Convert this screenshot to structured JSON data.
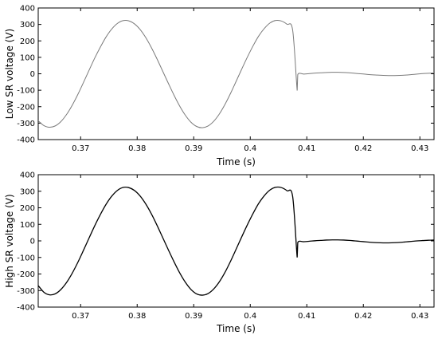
{
  "chart_data": [
    {
      "type": "line",
      "xlabel": "Time (s)",
      "ylabel": "Low SR voltage (V)",
      "xlim": [
        0.3625,
        0.4325
      ],
      "ylim": [
        -400,
        400
      ],
      "xticks": [
        0.37,
        0.38,
        0.39,
        0.4,
        0.41,
        0.42,
        0.43
      ],
      "xtick_labels": [
        "0.37",
        "0.38",
        "0.39",
        "0.4",
        "0.41",
        "0.42",
        "0.43"
      ],
      "yticks": [
        400,
        300,
        200,
        100,
        0,
        -100,
        -200,
        -300,
        -400
      ],
      "ytick_labels": [
        "400",
        "300",
        "200",
        "100",
        "0",
        "-100",
        "-200",
        "-300",
        "-400"
      ],
      "grid": false,
      "line_color": "#7a7a7a",
      "series": [
        {
          "x": [
            0.3625,
            0.3635,
            0.3645,
            0.3655,
            0.3665,
            0.3675,
            0.3685,
            0.3695,
            0.3705,
            0.3715,
            0.3725,
            0.3735,
            0.3745,
            0.3755,
            0.3765,
            0.3775,
            0.3785,
            0.3795,
            0.3805,
            0.3815,
            0.3825,
            0.3835,
            0.3845,
            0.3855,
            0.3865,
            0.3875,
            0.3885,
            0.3895,
            0.3905,
            0.3915,
            0.3925,
            0.3935,
            0.3945,
            0.3955,
            0.3965,
            0.3975,
            0.3985,
            0.3995,
            0.4005,
            0.4015,
            0.4025,
            0.4035,
            0.4045,
            0.4055,
            0.4065,
            0.4075,
            0.4083,
            0.4084,
            0.4095,
            0.4105,
            0.4115,
            0.4125,
            0.4135,
            0.4145,
            0.4155,
            0.4165,
            0.4175,
            0.4185,
            0.4195,
            0.4205,
            0.4215,
            0.4225,
            0.4235,
            0.4245,
            0.4255,
            0.4265,
            0.4275,
            0.4285,
            0.4295,
            0.4305,
            0.4315,
            0.4325
          ],
          "y": [
            -286,
            -315,
            -325,
            -317,
            -291,
            -248,
            -192,
            -126,
            -53,
            22,
            96,
            163,
            224,
            272,
            306,
            323,
            322,
            304,
            270,
            221,
            160,
            91,
            17,
            -57,
            -129,
            -195,
            -251,
            -294,
            -320,
            -328,
            -318,
            -290,
            -246,
            -188,
            -120,
            -46,
            29,
            102,
            170,
            230,
            276,
            309,
            324,
            321,
            301,
            265,
            -102,
            -5,
            -2,
            1,
            4,
            6,
            8,
            9,
            9,
            8,
            6,
            3,
            0,
            -3,
            -6,
            -8,
            -10,
            -11,
            -11,
            -10,
            -8,
            -5,
            -2,
            1,
            3,
            5
          ]
        }
      ]
    },
    {
      "type": "line",
      "xlabel": "Time (s)",
      "ylabel": "High SR voltage (V)",
      "xlim": [
        0.3625,
        0.4325
      ],
      "ylim": [
        -400,
        400
      ],
      "xticks": [
        0.37,
        0.38,
        0.39,
        0.4,
        0.41,
        0.42,
        0.43
      ],
      "xtick_labels": [
        "0.37",
        "0.38",
        "0.39",
        "0.4",
        "0.41",
        "0.42",
        "0.43"
      ],
      "yticks": [
        400,
        300,
        200,
        100,
        0,
        -100,
        -200,
        -300,
        -400
      ],
      "ytick_labels": [
        "400",
        "300",
        "200",
        "100",
        "0",
        "-100",
        "-200",
        "-300",
        "-400"
      ],
      "grid": false,
      "line_color": "#000000",
      "series": [
        {
          "x": [
            0.3625,
            0.3635,
            0.3645,
            0.3655,
            0.3665,
            0.3675,
            0.3685,
            0.3695,
            0.3705,
            0.3715,
            0.3725,
            0.3735,
            0.3745,
            0.3755,
            0.3765,
            0.3775,
            0.3785,
            0.3795,
            0.3805,
            0.3815,
            0.3825,
            0.3835,
            0.3845,
            0.3855,
            0.3865,
            0.3875,
            0.3885,
            0.3895,
            0.3905,
            0.3915,
            0.3925,
            0.3935,
            0.3945,
            0.3955,
            0.3965,
            0.3975,
            0.3985,
            0.3995,
            0.4005,
            0.4015,
            0.4025,
            0.4035,
            0.4045,
            0.4055,
            0.4065,
            0.4075,
            0.4083,
            0.4084,
            0.4095,
            0.4105,
            0.4115,
            0.4125,
            0.4135,
            0.4145,
            0.4155,
            0.4165,
            0.4175,
            0.4185,
            0.4195,
            0.4205,
            0.4215,
            0.4225,
            0.4235,
            0.4245,
            0.4255,
            0.4265,
            0.4275,
            0.4285,
            0.4295,
            0.4305,
            0.4315,
            0.4325
          ],
          "y": [
            -270,
            -310,
            -326,
            -320,
            -294,
            -252,
            -196,
            -130,
            -57,
            18,
            92,
            160,
            221,
            270,
            305,
            323,
            322,
            305,
            272,
            224,
            164,
            95,
            21,
            -53,
            -125,
            -192,
            -249,
            -293,
            -320,
            -328,
            -319,
            -292,
            -249,
            -192,
            -124,
            -50,
            25,
            98,
            166,
            227,
            274,
            308,
            324,
            322,
            303,
            268,
            -100,
            -10,
            -5,
            -2,
            1,
            3,
            5,
            6,
            6,
            5,
            3,
            0,
            -3,
            -6,
            -9,
            -11,
            -12,
            -12,
            -11,
            -9,
            -6,
            -3,
            0,
            2,
            4,
            5
          ]
        }
      ]
    }
  ]
}
